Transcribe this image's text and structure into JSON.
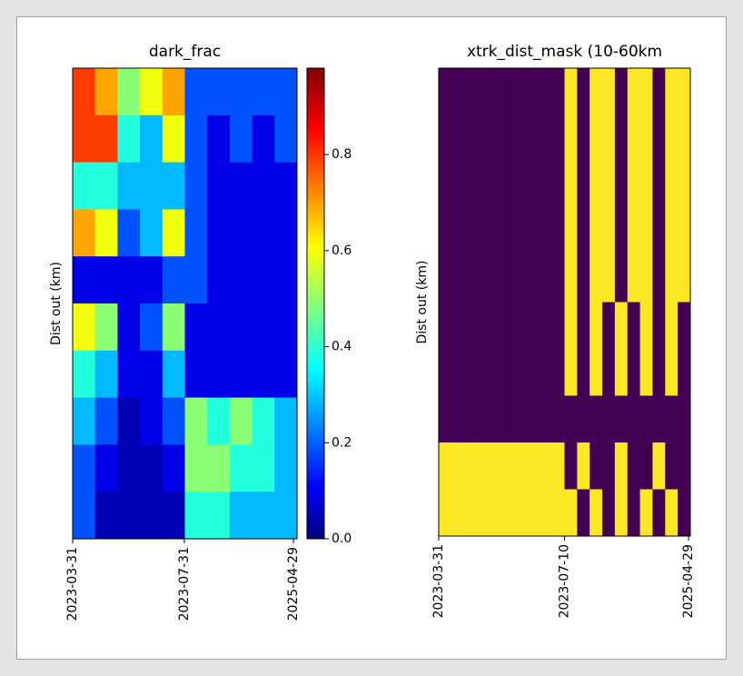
{
  "chart_data": [
    {
      "type": "heatmap",
      "title": "dark_frac",
      "ylabel": "Dist out (km)",
      "colormap": "jet",
      "xlim": [
        0,
        10
      ],
      "xticks": [
        {
          "value": 0,
          "label": "2023-03-31"
        },
        {
          "value": 4.98,
          "label": "2023-07-31"
        },
        {
          "value": 9.84,
          "label": "2025-04-29"
        }
      ],
      "clim": [
        0,
        0.98
      ],
      "cticks": [
        {
          "value": 0,
          "label": "0.0"
        },
        {
          "value": 0.2,
          "label": "0.2"
        },
        {
          "value": 0.4,
          "label": "0.4"
        },
        {
          "value": 0.6,
          "label": "0.6"
        },
        {
          "value": 0.8,
          "label": "0.8"
        }
      ],
      "values": [
        [
          0.8,
          0.7,
          0.5,
          0.6,
          0.7,
          0.2,
          0.2,
          0.2,
          0.2,
          0.2
        ],
        [
          0.8,
          0.8,
          0.4,
          0.3,
          0.6,
          0.2,
          0.1,
          0.2,
          0.1,
          0.2
        ],
        [
          0.4,
          0.4,
          0.3,
          0.3,
          0.3,
          0.2,
          0.1,
          0.1,
          0.1,
          0.1
        ],
        [
          0.7,
          0.6,
          0.2,
          0.3,
          0.6,
          0.2,
          0.1,
          0.1,
          0.1,
          0.1
        ],
        [
          0.1,
          0.1,
          0.1,
          0.1,
          0.2,
          0.2,
          0.1,
          0.1,
          0.1,
          0.1
        ],
        [
          0.6,
          0.5,
          0.1,
          0.2,
          0.5,
          0.1,
          0.1,
          0.1,
          0.1,
          0.1
        ],
        [
          0.4,
          0.3,
          0.1,
          0.1,
          0.3,
          0.1,
          0.1,
          0.1,
          0.1,
          0.1
        ],
        [
          0.3,
          0.2,
          0.05,
          0.1,
          0.2,
          0.5,
          0.4,
          0.5,
          0.4,
          0.3
        ],
        [
          0.2,
          0.1,
          0.05,
          0.05,
          0.1,
          0.5,
          0.5,
          0.4,
          0.4,
          0.3
        ],
        [
          0.2,
          0.05,
          0.05,
          0.05,
          0.05,
          0.4,
          0.4,
          0.3,
          0.3,
          0.3
        ]
      ]
    },
    {
      "type": "heatmap",
      "title": "xtrk_dist_mask (10-60km",
      "ylabel": "Dist out (km)",
      "colormap": "viridis",
      "xlim": [
        0,
        20
      ],
      "xticks": [
        {
          "value": 0,
          "label": "2023-03-31"
        },
        {
          "value": 10,
          "label": "2023-07-10"
        },
        {
          "value": 19.86,
          "label": "2025-04-29"
        }
      ],
      "values": [
        [
          0,
          0,
          0,
          0,
          0,
          0,
          0,
          0,
          0,
          0,
          1,
          0,
          1,
          1,
          0,
          1,
          1,
          0,
          1,
          1
        ],
        [
          0,
          0,
          0,
          0,
          0,
          0,
          0,
          0,
          0,
          0,
          1,
          0,
          1,
          1,
          0,
          1,
          1,
          0,
          1,
          1
        ],
        [
          0,
          0,
          0,
          0,
          0,
          0,
          0,
          0,
          0,
          0,
          1,
          0,
          1,
          1,
          0,
          1,
          1,
          0,
          1,
          1
        ],
        [
          0,
          0,
          0,
          0,
          0,
          0,
          0,
          0,
          0,
          0,
          1,
          0,
          1,
          1,
          0,
          1,
          1,
          0,
          1,
          1
        ],
        [
          0,
          0,
          0,
          0,
          0,
          0,
          0,
          0,
          0,
          0,
          1,
          0,
          1,
          1,
          0,
          1,
          1,
          0,
          1,
          1
        ],
        [
          0,
          0,
          0,
          0,
          0,
          0,
          0,
          0,
          0,
          0,
          1,
          0,
          1,
          0,
          1,
          0,
          1,
          0,
          1,
          0
        ],
        [
          0,
          0,
          0,
          0,
          0,
          0,
          0,
          0,
          0,
          0,
          1,
          0,
          1,
          0,
          1,
          0,
          1,
          0,
          1,
          0
        ],
        [
          0,
          0,
          0,
          0,
          0,
          0,
          0,
          0,
          0,
          0,
          0,
          0,
          0,
          0,
          0,
          0,
          0,
          0,
          0,
          0
        ],
        [
          1,
          1,
          1,
          1,
          1,
          1,
          1,
          1,
          1,
          1,
          0,
          1,
          0,
          0,
          1,
          0,
          0,
          1,
          0,
          0
        ],
        [
          1,
          1,
          1,
          1,
          1,
          1,
          1,
          1,
          1,
          1,
          1,
          0,
          1,
          0,
          1,
          0,
          1,
          0,
          1,
          0
        ]
      ]
    }
  ]
}
